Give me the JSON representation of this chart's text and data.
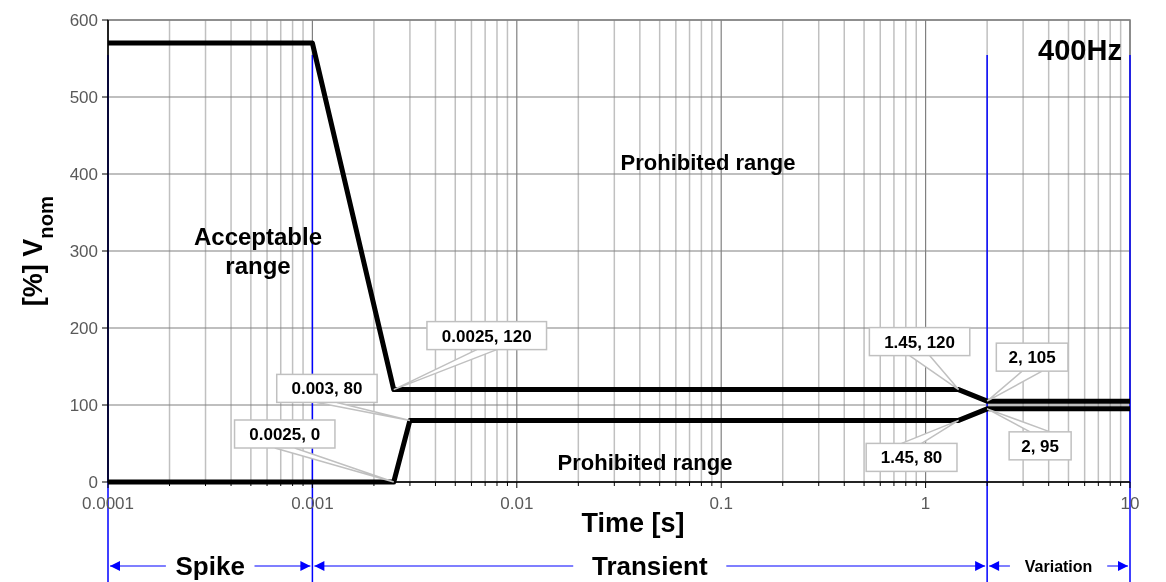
{
  "chart_data": {
    "type": "line",
    "xlabel": "Time [s]",
    "ylabel": "[%] V$_{nom}$",
    "log": "x",
    "grid": true,
    "marker": "none",
    "line_style": "solid",
    "xlim": [
      0.0001,
      10
    ],
    "xticks": [
      0.0001,
      0.001,
      0.01,
      0.1,
      1,
      10
    ],
    "ylim": [
      0,
      600
    ],
    "yticks": [
      0,
      100,
      200,
      300,
      400,
      500,
      600
    ],
    "series": [
      {
        "color": "#000000",
        "x": [
          0.0001,
          0.001,
          0.0025,
          1.45,
          2,
          10
        ],
        "values": [
          570,
          570,
          120,
          120,
          105,
          105
        ]
      },
      {
        "color": "#000000",
        "x": [
          0.0001,
          0.0025,
          0.003,
          1.45,
          2,
          10
        ],
        "values": [
          0,
          0,
          80,
          80,
          95,
          95
        ]
      }
    ],
    "ref_lines": [
      {
        "axis": "x",
        "value": 0.0001,
        "color": "#0000ff"
      },
      {
        "axis": "x",
        "value": 0.001,
        "color": "#0000ff"
      },
      {
        "axis": "x",
        "value": 2,
        "color": "#0000ff"
      },
      {
        "axis": "x",
        "value": 10,
        "color": "#0000ff"
      }
    ],
    "annotations": [
      "400Hz",
      "Acceptable range",
      "Prohibited range",
      "Prohibited range",
      "Spike",
      "Transient",
      "Variation",
      {
        "text": "0.0025, 120",
        "x": 0.0025,
        "y": 120
      },
      {
        "text": "0.003, 80",
        "x": 0.003,
        "y": 80
      },
      {
        "text": "0.0025, 0",
        "x": 0.0025,
        "y": 0
      },
      {
        "text": "1.45, 120",
        "x": 1.45,
        "y": 120
      },
      {
        "text": "2, 105",
        "x": 2,
        "y": 105
      },
      {
        "text": "2, 95",
        "x": 2,
        "y": 95
      },
      {
        "text": "1.45, 80",
        "x": 1.45,
        "y": 80
      }
    ]
  }
}
